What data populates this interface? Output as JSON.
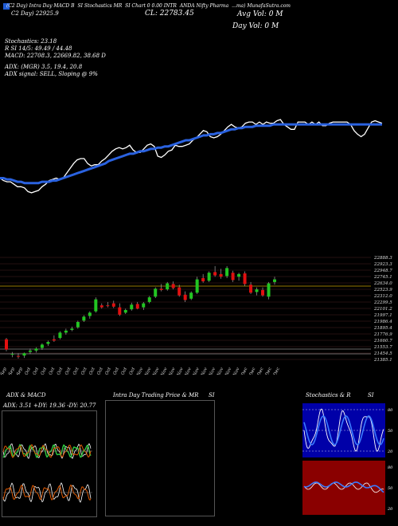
{
  "header": {
    "icon_color": "#1e5bd4",
    "title_row": [
      "(C2 Day) Intra Day MACD B",
      "SI Stochastics MR",
      "SI Chart 0 0.00 INTR",
      "ANDA Nifty Pharma",
      "...ma) MunafaSutra.com"
    ],
    "ohlc_line": "C2 Day) 22925.9",
    "close_label": "CL: 22783.45",
    "avg_vol": "Avg Vol: 0  M",
    "day_vol": "Day Vol: 0  M"
  },
  "stats": {
    "stochastics": "Stochastics: 23.18",
    "stoch_values": "R    SI 14/5: 49.49 / 44.48",
    "macd": "MACD: 22708.3,  22669.82,  38.68  D",
    "adx": "ADX:               (MGR) 3.5,  19.4,  20.8",
    "adx_signal": "ADX  signal: SELL, Sloping @ 9%"
  },
  "price_axis": [
    "22888.3",
    "22923.3",
    "22948.7",
    "22745.1",
    "22634.0",
    "22523.9",
    "22312.0",
    "22299.5",
    "22101.2",
    "21997.1",
    "21986.4",
    "21895.4",
    "21776.9",
    "21660.7",
    "21553.7",
    "21454.5",
    "21385.1"
  ],
  "date_labels": [
    "25 Sep",
    "27 Sep",
    "29 Sep",
    "01 Oct",
    "03 Oct",
    "05 Oct",
    "08 Oct",
    "10 Oct",
    "12 Oct",
    "15 Oct",
    "17 Oct",
    "19 Oct",
    "22 Oct",
    "24 Oct",
    "26 Oct",
    "29 Oct",
    "31 Oct",
    "02 Nov",
    "05 Nov",
    "07 Nov",
    "09 Nov",
    "12 Nov",
    "14 Nov",
    "16 Nov",
    "19 Nov",
    "21 Nov",
    "23 Nov",
    "26 Nov",
    "28 Nov",
    "30 Nov",
    "03 Dec",
    "05 Dec",
    "07 Dec",
    "09 Dec",
    "11 Dec"
  ],
  "panels": {
    "adx_title": "ADX  & MACD",
    "adx_values": "ADX: 3.51  +DY: 19.36  -DY: 20.77",
    "intraday_title": "Intra  Day Trading Price  & MR",
    "intraday_title2": "SI",
    "stoch_title": "Stochastics & R",
    "stoch_title2": "SI",
    "stoch_ticks": [
      "80",
      "50",
      "20"
    ],
    "rsi_ticks": [
      "80",
      "50",
      "20"
    ]
  },
  "chart_data": {
    "type": "candlestick",
    "title": "",
    "ylim": [
      21385,
      22990
    ],
    "colors": {
      "up": "#22c522",
      "down": "#e01010",
      "sma": "#2a62e0",
      "price_line": "#ffffff"
    },
    "candles": [
      {
        "o": 21700,
        "h": 21720,
        "l": 21520,
        "c": 21545
      },
      {
        "o": 21470,
        "h": 21510,
        "l": 21430,
        "c": 21480
      },
      {
        "o": 21450,
        "h": 21490,
        "l": 21410,
        "c": 21440
      },
      {
        "o": 21455,
        "h": 21500,
        "l": 21420,
        "c": 21490
      },
      {
        "o": 21510,
        "h": 21560,
        "l": 21480,
        "c": 21530
      },
      {
        "o": 21530,
        "h": 21580,
        "l": 21500,
        "c": 21560
      },
      {
        "o": 21570,
        "h": 21640,
        "l": 21540,
        "c": 21620
      },
      {
        "o": 21630,
        "h": 21680,
        "l": 21600,
        "c": 21660
      },
      {
        "o": 21700,
        "h": 21760,
        "l": 21660,
        "c": 21680
      },
      {
        "o": 21720,
        "h": 21820,
        "l": 21700,
        "c": 21800
      },
      {
        "o": 21800,
        "h": 21860,
        "l": 21770,
        "c": 21830
      },
      {
        "o": 21840,
        "h": 21890,
        "l": 21820,
        "c": 21860
      },
      {
        "o": 21880,
        "h": 21980,
        "l": 21860,
        "c": 21960
      },
      {
        "o": 21980,
        "h": 22060,
        "l": 21960,
        "c": 22040
      },
      {
        "o": 22050,
        "h": 22120,
        "l": 22010,
        "c": 22100
      },
      {
        "o": 22120,
        "h": 22330,
        "l": 22100,
        "c": 22300
      },
      {
        "o": 22210,
        "h": 22240,
        "l": 22160,
        "c": 22180
      },
      {
        "o": 22210,
        "h": 22260,
        "l": 22180,
        "c": 22200
      },
      {
        "o": 22240,
        "h": 22280,
        "l": 22170,
        "c": 22190
      },
      {
        "o": 22180,
        "h": 22240,
        "l": 22050,
        "c": 22070
      },
      {
        "o": 22100,
        "h": 22160,
        "l": 22080,
        "c": 22140
      },
      {
        "o": 22150,
        "h": 22250,
        "l": 22130,
        "c": 22220
      },
      {
        "o": 22230,
        "h": 22260,
        "l": 22150,
        "c": 22160
      },
      {
        "o": 22180,
        "h": 22260,
        "l": 22140,
        "c": 22240
      },
      {
        "o": 22260,
        "h": 22350,
        "l": 22240,
        "c": 22330
      },
      {
        "o": 22340,
        "h": 22480,
        "l": 22320,
        "c": 22460
      },
      {
        "o": 22460,
        "h": 22530,
        "l": 22420,
        "c": 22440
      },
      {
        "o": 22450,
        "h": 22560,
        "l": 22430,
        "c": 22540
      },
      {
        "o": 22530,
        "h": 22570,
        "l": 22450,
        "c": 22470
      },
      {
        "o": 22480,
        "h": 22520,
        "l": 22340,
        "c": 22360
      },
      {
        "o": 22370,
        "h": 22420,
        "l": 22260,
        "c": 22290
      },
      {
        "o": 22310,
        "h": 22420,
        "l": 22290,
        "c": 22400
      },
      {
        "o": 22400,
        "h": 22640,
        "l": 22380,
        "c": 22600
      },
      {
        "o": 22620,
        "h": 22680,
        "l": 22550,
        "c": 22570
      },
      {
        "o": 22580,
        "h": 22720,
        "l": 22560,
        "c": 22700
      },
      {
        "o": 22710,
        "h": 22800,
        "l": 22640,
        "c": 22660
      },
      {
        "o": 22680,
        "h": 22760,
        "l": 22610,
        "c": 22640
      },
      {
        "o": 22650,
        "h": 22800,
        "l": 22620,
        "c": 22770
      },
      {
        "o": 22700,
        "h": 22730,
        "l": 22560,
        "c": 22590
      },
      {
        "o": 22640,
        "h": 22700,
        "l": 22580,
        "c": 22680
      },
      {
        "o": 22690,
        "h": 22720,
        "l": 22500,
        "c": 22530
      },
      {
        "o": 22520,
        "h": 22560,
        "l": 22380,
        "c": 22400
      },
      {
        "o": 22410,
        "h": 22480,
        "l": 22360,
        "c": 22450
      },
      {
        "o": 22440,
        "h": 22480,
        "l": 22340,
        "c": 22360
      },
      {
        "o": 22340,
        "h": 22560,
        "l": 22300,
        "c": 22540
      },
      {
        "o": 22560,
        "h": 22640,
        "l": 22520,
        "c": 22600
      }
    ],
    "indicator_line": [
      14,
      12,
      11,
      11,
      9,
      7,
      7,
      6,
      3,
      2,
      3,
      4,
      7,
      9,
      12,
      13,
      14,
      13,
      14,
      18,
      22,
      26,
      29,
      30,
      30,
      26,
      24,
      25,
      25,
      28,
      30,
      33,
      36,
      38,
      39,
      38,
      39,
      41,
      37,
      35,
      35,
      38,
      41,
      42,
      40,
      32,
      31,
      33,
      36,
      37,
      41,
      40,
      40,
      41,
      42,
      45,
      47,
      50,
      53,
      52,
      48,
      47,
      48,
      50,
      53,
      56,
      58,
      56,
      55,
      56,
      59,
      60,
      60,
      58,
      60,
      58,
      60,
      59,
      59,
      61,
      62,
      58,
      56,
      54,
      54,
      60,
      60,
      60,
      58,
      60,
      58,
      60,
      57,
      57,
      59,
      60,
      60,
      60,
      60,
      60,
      58,
      53,
      50,
      48,
      50,
      55,
      60,
      61,
      60,
      59
    ],
    "sma_line": [
      14,
      14,
      13,
      13,
      12,
      11,
      11,
      10,
      10,
      10,
      10,
      10,
      11,
      11,
      11,
      12,
      12,
      13,
      14,
      15,
      16,
      17,
      18,
      19,
      20,
      21,
      22,
      23,
      24,
      25,
      26,
      28,
      29,
      30,
      31,
      32,
      33,
      34,
      34,
      35,
      36,
      36,
      37,
      38,
      38,
      39,
      39,
      40,
      40,
      41,
      42,
      43,
      44,
      45,
      45,
      46,
      47,
      48,
      49,
      49,
      50,
      50,
      51,
      51,
      52,
      53,
      54,
      54,
      55,
      55,
      56,
      56,
      56,
      57,
      57,
      57,
      57,
      57,
      58,
      58,
      58,
      58,
      58,
      58,
      58,
      58,
      58,
      58,
      58,
      58,
      58,
      58,
      58,
      58,
      58,
      58,
      58,
      58,
      58,
      58,
      58,
      58,
      58,
      58,
      58,
      58,
      58,
      58,
      58,
      58
    ]
  }
}
